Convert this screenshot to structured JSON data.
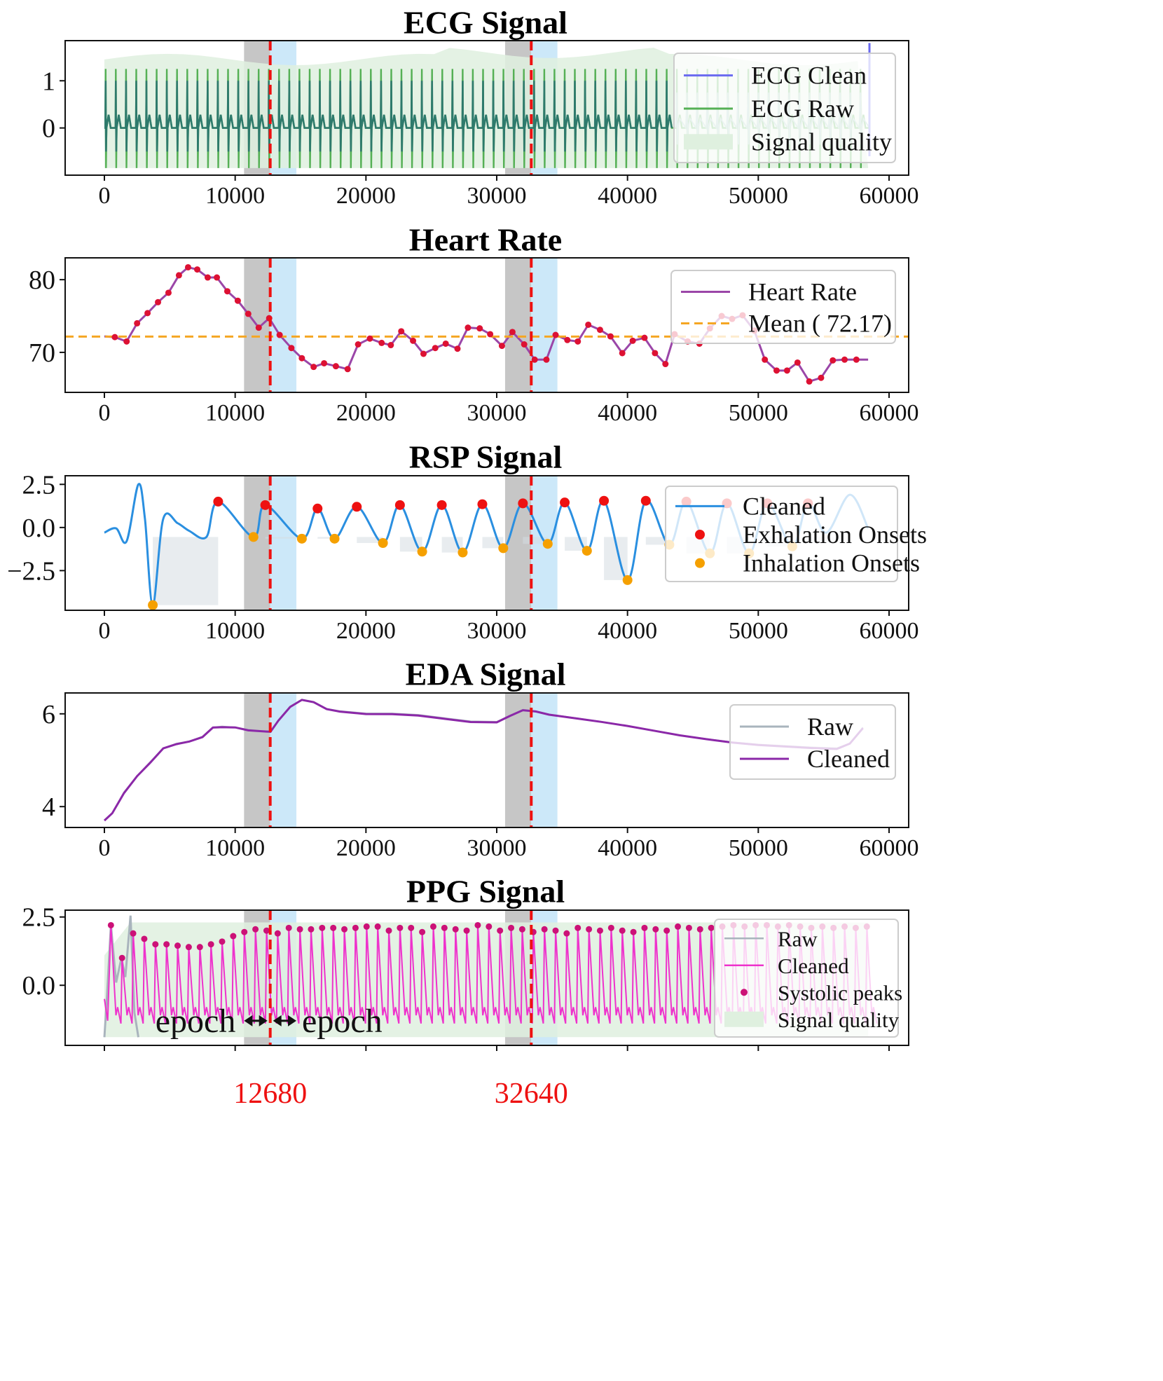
{
  "events": [
    12680,
    32640
  ],
  "epoch_label": "epoch",
  "colors": {
    "event_line": "#ee1111",
    "pre_window": "#b3b3b3",
    "post_window": "#bfe2f8",
    "ecg_clean": "#6a6af0",
    "ecg_raw": "#55b055",
    "ecg_dark": "#2e7a6c",
    "quality": "#dff0df",
    "hr": "#9b46a8",
    "hr_marker": "#dd1133",
    "hr_mean": "#f5a623",
    "rsp": "#2a8fe0",
    "exh": "#ee1111",
    "inh": "#f5a000",
    "rsp_fill": "#d5dde2",
    "eda_raw": "#a9b4bd",
    "eda_clean": "#8b28a8",
    "ppg_raw": "#a9b4bd",
    "ppg_clean": "#ee33cc",
    "ppg_peak": "#cc1177"
  },
  "chart_data": [
    {
      "type": "line",
      "title": "ECG Signal",
      "xlim": [
        -3000,
        61500
      ],
      "ylim": [
        -1.0,
        1.85
      ],
      "xticks": [
        0,
        10000,
        20000,
        30000,
        40000,
        50000,
        60000
      ],
      "yticks": [
        0,
        1
      ],
      "legend": {
        "position": "right",
        "entries": [
          "ECG Clean",
          "ECG Raw",
          "Signal quality"
        ]
      },
      "series": [
        {
          "name": "ECG Clean",
          "beat_spacing_samples": 780,
          "r_peak": 1.0,
          "baseline": 0.0
        },
        {
          "name": "ECG Raw",
          "beat_spacing_samples": 780,
          "r_peak": 1.25,
          "s_wave": -0.85
        },
        {
          "name": "Signal quality",
          "range": [
            -0.85,
            1.55
          ]
        }
      ]
    },
    {
      "type": "line",
      "title": "Heart Rate",
      "xlim": [
        -3000,
        61500
      ],
      "ylim": [
        64.5,
        83
      ],
      "xticks": [
        0,
        10000,
        20000,
        30000,
        40000,
        50000,
        60000
      ],
      "yticks": [
        70,
        80
      ],
      "legend": {
        "position": "top-right",
        "entries": [
          "Heart Rate",
          "Mean ( 72.17)"
        ]
      },
      "mean": 72.17,
      "series": [
        {
          "name": "Heart Rate",
          "x": [
            0,
            800,
            1700,
            2500,
            3300,
            4100,
            4900,
            5700,
            6400,
            7100,
            7900,
            8600,
            9400,
            10200,
            11000,
            11800,
            12600,
            13400,
            14300,
            15100,
            16000,
            16800,
            17700,
            18600,
            19400,
            20300,
            21200,
            21900,
            22700,
            23600,
            24400,
            25300,
            26100,
            27000,
            27800,
            28700,
            29500,
            30400,
            31200,
            32100,
            32900,
            33800,
            34500,
            35400,
            36200,
            37000,
            37900,
            38700,
            39600,
            40400,
            41300,
            42100,
            42900,
            43600,
            44600,
            45500,
            46300,
            47200,
            48000,
            48800,
            49700,
            50500,
            51400,
            52200,
            53000,
            53900,
            54800,
            55700,
            56600,
            57500,
            58400
          ],
          "values": [
            72.2,
            72.1,
            71.5,
            74.0,
            75.4,
            76.9,
            78.2,
            80.6,
            81.7,
            81.4,
            80.3,
            80.3,
            78.4,
            77.1,
            75.3,
            73.4,
            74.7,
            72.4,
            70.6,
            69.2,
            68.0,
            68.5,
            68.1,
            67.7,
            71.1,
            71.9,
            71.3,
            71.0,
            72.9,
            71.6,
            69.8,
            70.6,
            71.2,
            70.5,
            73.4,
            73.3,
            72.5,
            70.9,
            72.8,
            71.1,
            69.0,
            69.0,
            72.4,
            71.7,
            71.5,
            73.8,
            73.1,
            72.2,
            69.9,
            71.6,
            72.0,
            69.9,
            68.4,
            72.5,
            71.5,
            71.2,
            73.3,
            75.0,
            74.6,
            75.1,
            73.0,
            69.0,
            67.5,
            67.5,
            68.6,
            66.0,
            66.5,
            68.9,
            69.0,
            69.0,
            69.0
          ]
        }
      ]
    },
    {
      "type": "line",
      "title": "RSP Signal",
      "xlim": [
        -3000,
        61500
      ],
      "ylim": [
        -4.8,
        3.0
      ],
      "xticks": [
        0,
        10000,
        20000,
        30000,
        40000,
        50000,
        60000
      ],
      "yticks": [
        2.5,
        0.0,
        -2.5
      ],
      "legend": {
        "position": "top-right",
        "entries": [
          "Cleaned",
          "Exhalation Onsets",
          "Inhalation Onsets"
        ]
      },
      "series": [
        {
          "name": "Exhalation Onsets",
          "x": [
            8700,
            12300,
            16300,
            19300,
            22600,
            25800,
            28900,
            32000,
            35200,
            38200,
            41400,
            44500,
            47600,
            50700,
            53800
          ],
          "values": [
            1.5,
            1.3,
            1.1,
            1.2,
            1.3,
            1.3,
            1.35,
            1.4,
            1.45,
            1.55,
            1.55,
            1.5,
            1.4,
            1.4,
            1.4
          ]
        },
        {
          "name": "Inhalation Onsets",
          "x": [
            3700,
            11400,
            15100,
            17600,
            21300,
            24300,
            27400,
            30500,
            33900,
            36900,
            40000,
            43200,
            46300,
            49300,
            52600
          ],
          "values": [
            -4.5,
            -0.55,
            -0.65,
            -0.65,
            -0.9,
            -1.4,
            -1.45,
            -1.2,
            -0.95,
            -1.35,
            -3.05,
            -1.0,
            -1.5,
            -1.5,
            -1.1
          ]
        }
      ]
    },
    {
      "type": "line",
      "title": "EDA Signal",
      "xlim": [
        -3000,
        61500
      ],
      "ylim": [
        3.55,
        6.45
      ],
      "xticks": [
        0,
        10000,
        20000,
        30000,
        40000,
        50000,
        60000
      ],
      "yticks": [
        6,
        4
      ],
      "legend": {
        "position": "right",
        "entries": [
          "Raw",
          "Cleaned"
        ]
      },
      "series": [
        {
          "name": "Cleaned",
          "x": [
            0,
            600,
            1500,
            2500,
            3500,
            4500,
            5500,
            6500,
            7500,
            8300,
            9000,
            10000,
            11000,
            12000,
            12700,
            13300,
            14200,
            15100,
            16000,
            17000,
            18000,
            20000,
            22000,
            24000,
            26000,
            28000,
            30000,
            31000,
            32000,
            33000,
            34000,
            36000,
            38000,
            40000,
            42000,
            44000,
            46000,
            48000,
            50000,
            52000,
            54000,
            56000,
            57000,
            58000
          ],
          "values": [
            3.7,
            3.85,
            4.3,
            4.65,
            4.95,
            5.25,
            5.35,
            5.4,
            5.5,
            5.7,
            5.72,
            5.7,
            5.65,
            5.62,
            5.62,
            5.85,
            6.15,
            6.3,
            6.25,
            6.1,
            6.05,
            6.0,
            6.0,
            5.97,
            5.9,
            5.83,
            5.82,
            5.95,
            6.08,
            6.05,
            5.98,
            5.9,
            5.82,
            5.73,
            5.63,
            5.53,
            5.45,
            5.38,
            5.33,
            5.3,
            5.27,
            5.25,
            5.35,
            5.7
          ]
        }
      ]
    },
    {
      "type": "line",
      "title": "PPG Signal",
      "xlim": [
        -3000,
        61500
      ],
      "ylim": [
        -2.2,
        2.75
      ],
      "xticks": [
        0,
        10000,
        20000,
        30000,
        40000,
        50000,
        60000
      ],
      "show_xtick_labels": false,
      "yticks": [
        2.5,
        0.0
      ],
      "legend": {
        "position": "right",
        "entries": [
          "Raw",
          "Cleaned",
          "Systolic peaks",
          "Signal quality"
        ]
      },
      "series": [
        {
          "name": "Systolic peaks",
          "beat_spacing_samples": 850,
          "values": [
            2.2,
            1.0,
            1.9,
            1.7,
            1.5,
            1.5,
            1.45,
            1.4,
            1.4,
            1.5,
            1.6,
            1.8,
            1.95,
            2.05,
            2.0,
            1.9,
            2.1,
            2.05,
            2.05,
            2.1,
            2.1,
            2.05,
            2.1,
            2.15,
            2.15,
            2.0,
            2.1,
            2.1,
            1.95,
            2.15,
            2.1,
            2.05,
            2.0,
            2.2,
            2.15,
            2.0,
            2.1,
            2.05,
            1.95,
            2.05,
            2.0,
            1.9,
            2.1,
            2.05,
            2.0,
            2.1,
            2.0,
            1.95,
            2.1,
            2.05,
            2.0,
            2.15,
            2.1,
            2.05,
            2.1,
            2.15,
            2.2,
            2.15,
            2.2,
            2.2,
            2.15,
            2.2,
            2.15,
            2.1,
            2.15,
            2.1,
            2.15,
            2.1,
            2.15
          ]
        }
      ]
    }
  ]
}
